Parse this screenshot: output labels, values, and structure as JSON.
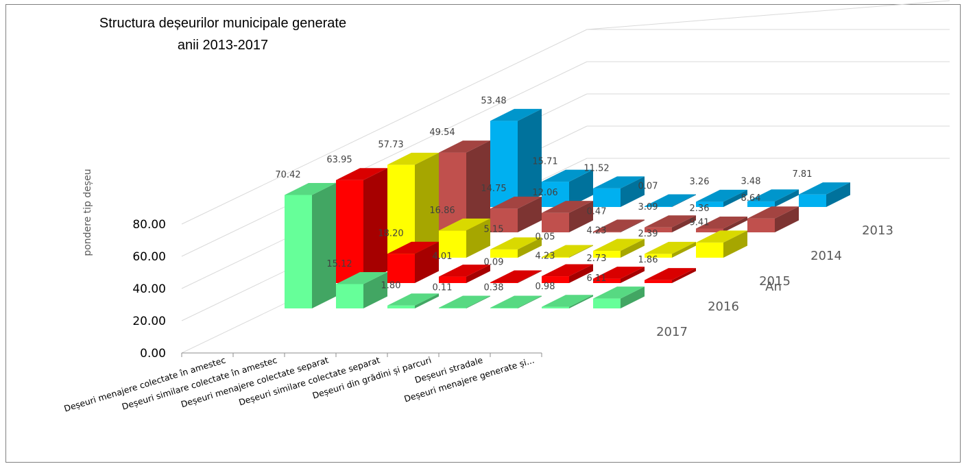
{
  "chart_data": {
    "type": "bar",
    "title": "Structura deșeurilor municipale generate",
    "subtitle": "anii 2013-2017",
    "ylabel": "pondere tip deșeu",
    "depth_axis_label": "An",
    "ylim": [
      0,
      80
    ],
    "y_ticks": [
      "0.00",
      "20.00",
      "40.00",
      "60.00",
      "80.00"
    ],
    "categories": [
      "Deșeuri menajere colectate în amestec",
      "Deșeuri similare colectate în amestec",
      "Deșeuri menajere colectate separat",
      "Deșeuri similare colectate separat",
      "Deșeuri din grădini și parcuri",
      "Deșeuri stradale",
      "Deșeuri menajere generate și..."
    ],
    "series": [
      {
        "name": "2013",
        "color": "#00b0f0",
        "values": [
          53.48,
          15.71,
          11.52,
          0.07,
          3.26,
          3.48,
          7.81
        ]
      },
      {
        "name": "2014",
        "color": "#c0504d",
        "values": [
          49.54,
          14.75,
          12.06,
          0.47,
          3.09,
          2.36,
          8.64
        ]
      },
      {
        "name": "2015",
        "color": "#ffff00",
        "values": [
          57.73,
          16.86,
          5.15,
          0.05,
          4.23,
          2.39,
          9.41
        ]
      },
      {
        "name": "2016",
        "color": "#ff0000",
        "values": [
          63.95,
          18.2,
          4.01,
          0.09,
          4.23,
          2.73,
          1.86
        ]
      },
      {
        "name": "2017",
        "color": "#66ff99",
        "values": [
          70.42,
          15.12,
          1.8,
          0.11,
          0.38,
          0.98,
          6.11
        ]
      }
    ]
  }
}
